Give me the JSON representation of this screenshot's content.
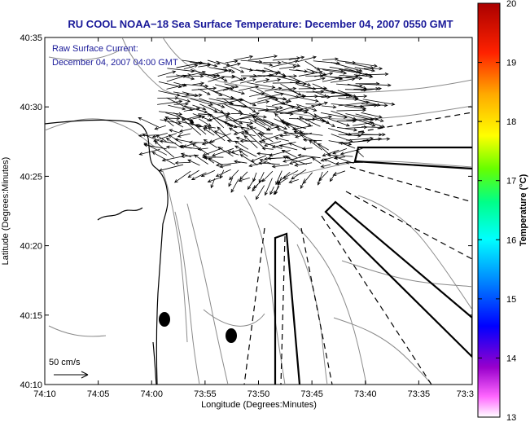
{
  "title": "RU COOL  NOAA−18  Sea Surface Temperature:  December 04, 2007 0550 GMT",
  "annotation": {
    "line1": "Raw Surface Current:",
    "line2": "December 04, 2007 04:00 GMT"
  },
  "axes": {
    "xlabel": "Longitude (Degrees:Minutes)",
    "ylabel": "Latitude (Degrees:Minutes)",
    "xticks": [
      {
        "label": "74:10",
        "value": 0
      },
      {
        "label": "74:05",
        "value": 5
      },
      {
        "label": "74:00",
        "value": 10
      },
      {
        "label": "73:55",
        "value": 15
      },
      {
        "label": "73:50",
        "value": 20
      },
      {
        "label": "73:45",
        "value": 25
      },
      {
        "label": "73:40",
        "value": 30
      },
      {
        "label": "73:35",
        "value": 35
      },
      {
        "label": "73:3",
        "value": 40
      }
    ],
    "yticks": [
      {
        "label": "40:35",
        "value": 35
      },
      {
        "label": "40:30",
        "value": 30
      },
      {
        "label": "40:25",
        "value": 25
      },
      {
        "label": "40:20",
        "value": 20
      },
      {
        "label": "40:15",
        "value": 15
      },
      {
        "label": "40:10",
        "value": 10
      }
    ]
  },
  "colorbar": {
    "label": "Temperature (°C)",
    "min": 13,
    "max": 20,
    "ticks": [
      "20",
      "19",
      "18",
      "17",
      "16",
      "15",
      "14",
      "13"
    ]
  },
  "scale_arrow": {
    "label": "50 cm/s"
  },
  "colors": {
    "title": "#1a1a99",
    "contour": "#8a8a8a",
    "arrow": "#000000"
  }
}
